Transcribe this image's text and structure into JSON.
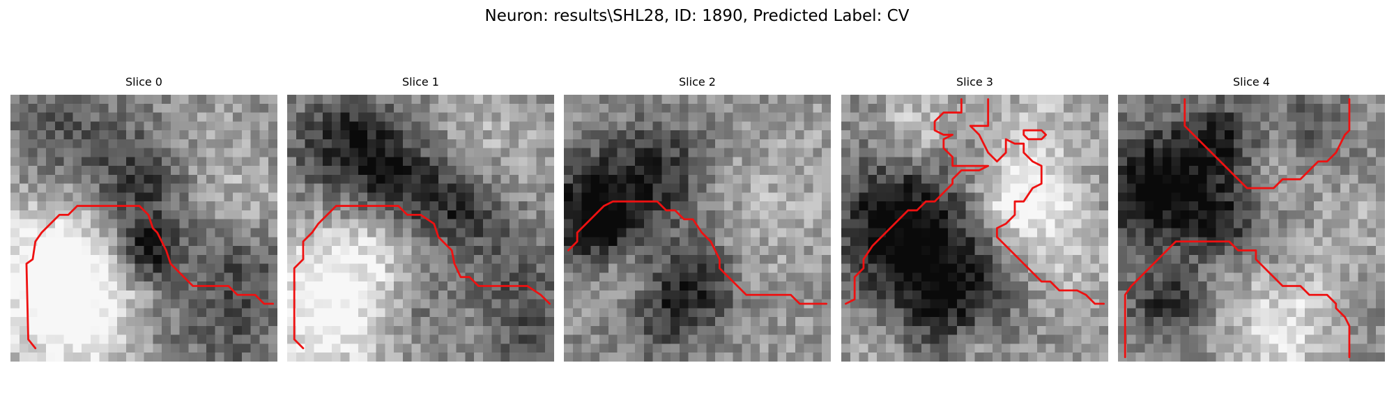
{
  "figure": {
    "title": "Neuron: results\\SHL28, ID: 1890, Predicted Label: CV"
  },
  "panels": [
    {
      "title": "Slice 0",
      "contours": [
        [
          [
            2.8,
            28.5
          ],
          [
            2,
            27.5
          ],
          [
            1.8,
            19
          ],
          [
            2.5,
            18.5
          ],
          [
            2.8,
            16.5
          ],
          [
            3.5,
            15.5
          ],
          [
            4.5,
            14.5
          ],
          [
            5.5,
            13.5
          ],
          [
            6.5,
            13.5
          ],
          [
            7.5,
            12.5
          ],
          [
            14.5,
            12.5
          ],
          [
            15.5,
            13.5
          ],
          [
            16,
            15
          ],
          [
            16.5,
            15.5
          ],
          [
            17.5,
            17.5
          ],
          [
            18,
            19
          ],
          [
            19.5,
            20.5
          ],
          [
            20.5,
            21.5
          ],
          [
            24.5,
            21.5
          ],
          [
            25.5,
            22.5
          ],
          [
            27.5,
            22.5
          ],
          [
            28.5,
            23.5
          ],
          [
            29.5,
            23.5
          ]
        ]
      ]
    },
    {
      "title": "Slice 1",
      "contours": [
        [
          [
            1.8,
            28.5
          ],
          [
            0.8,
            27.5
          ],
          [
            0.8,
            19.5
          ],
          [
            1.8,
            18.5
          ],
          [
            1.8,
            16.5
          ],
          [
            2.8,
            15.5
          ],
          [
            3.5,
            14.5
          ],
          [
            4.5,
            13.5
          ],
          [
            5.5,
            12.5
          ],
          [
            12.5,
            12.5
          ],
          [
            13.5,
            13.5
          ],
          [
            15,
            13.5
          ],
          [
            16.5,
            14.5
          ],
          [
            17,
            16
          ],
          [
            18.5,
            17.5
          ],
          [
            18.8,
            19
          ],
          [
            19.5,
            20.5
          ],
          [
            20.5,
            20.5
          ],
          [
            21.5,
            21.5
          ],
          [
            27,
            21.5
          ],
          [
            28.5,
            22.5
          ],
          [
            29.5,
            23.5
          ]
        ]
      ]
    },
    {
      "title": "Slice 2",
      "contours": [
        [
          [
            0.5,
            17.5
          ],
          [
            1.5,
            16.5
          ],
          [
            1.5,
            15.5
          ],
          [
            2.5,
            14.5
          ],
          [
            3.5,
            13.5
          ],
          [
            4.5,
            12.5
          ],
          [
            5.5,
            12
          ],
          [
            10.5,
            12
          ],
          [
            11.5,
            13
          ],
          [
            12.5,
            13
          ],
          [
            13.5,
            14
          ],
          [
            14.5,
            14
          ],
          [
            15.5,
            15.5
          ],
          [
            16.5,
            16.5
          ],
          [
            17.5,
            18.5
          ],
          [
            17.5,
            19.5
          ],
          [
            19.5,
            21.5
          ],
          [
            20.5,
            22.5
          ],
          [
            25.5,
            22.5
          ],
          [
            26.5,
            23.5
          ],
          [
            29.5,
            23.5
          ]
        ]
      ]
    },
    {
      "title": "Slice 3",
      "contours": [
        [
          [
            0.5,
            23.5
          ],
          [
            1.5,
            23
          ],
          [
            1.5,
            20.5
          ],
          [
            2.5,
            19.5
          ],
          [
            2.5,
            18.5
          ],
          [
            3.5,
            17
          ],
          [
            4.5,
            16
          ],
          [
            5.5,
            15
          ],
          [
            6.5,
            14
          ],
          [
            7.5,
            13
          ],
          [
            8.5,
            13
          ],
          [
            9.5,
            12
          ],
          [
            10.5,
            12
          ],
          [
            11.5,
            11
          ],
          [
            12.5,
            10
          ],
          [
            12.5,
            9.5
          ],
          [
            13.5,
            8.5
          ],
          [
            14.5,
            8.5
          ],
          [
            15.5,
            8.5
          ],
          [
            16.5,
            8
          ],
          [
            12.5,
            8
          ],
          [
            12.5,
            7
          ],
          [
            11.5,
            6
          ],
          [
            11.5,
            5
          ],
          [
            12.5,
            4.5
          ],
          [
            11.5,
            4.5
          ],
          [
            10.5,
            4
          ],
          [
            10.5,
            3
          ],
          [
            11.5,
            2
          ],
          [
            13.5,
            2
          ],
          [
            13.5,
            0.5
          ]
        ],
        [
          [
            16.5,
            0.5
          ],
          [
            16.5,
            3.5
          ],
          [
            14.5,
            3.5
          ],
          [
            15.5,
            4.5
          ],
          [
            16,
            5.5
          ],
          [
            16.5,
            6.5
          ],
          [
            17.5,
            7.5
          ],
          [
            18.5,
            6.5
          ],
          [
            18.5,
            5
          ],
          [
            19.5,
            5.5
          ],
          [
            20.5,
            5.5
          ],
          [
            20.5,
            6.5
          ],
          [
            21.5,
            7.5
          ],
          [
            22.5,
            8
          ],
          [
            22.5,
            10
          ],
          [
            21.5,
            10.5
          ],
          [
            20.5,
            12
          ],
          [
            19.5,
            12
          ],
          [
            19.5,
            13.5
          ],
          [
            18.5,
            14.5
          ],
          [
            17.5,
            15
          ],
          [
            17.5,
            16
          ],
          [
            18.5,
            17
          ],
          [
            19.5,
            18
          ],
          [
            20.5,
            19
          ],
          [
            21.5,
            20
          ],
          [
            22.5,
            21
          ],
          [
            23.5,
            21
          ],
          [
            24.5,
            22
          ],
          [
            26.5,
            22
          ],
          [
            27.5,
            22.5
          ],
          [
            28.5,
            23.5
          ],
          [
            29.5,
            23.5
          ]
        ],
        [
          [
            20.5,
            4
          ],
          [
            21.5,
            4
          ],
          [
            22.5,
            4
          ],
          [
            23,
            4.5
          ],
          [
            22.5,
            5
          ],
          [
            21,
            5
          ],
          [
            20.5,
            4.5
          ],
          [
            20.5,
            4
          ]
        ]
      ]
    },
    {
      "title": "Slice 4",
      "contours": [
        [
          [
            7.5,
            0.5
          ],
          [
            7.5,
            3.5
          ],
          [
            8.5,
            4.5
          ],
          [
            9.5,
            5.5
          ],
          [
            10.5,
            6.5
          ],
          [
            11.5,
            7.5
          ],
          [
            12.5,
            8.5
          ],
          [
            13.5,
            9.5
          ],
          [
            14.5,
            10.5
          ],
          [
            17.5,
            10.5
          ],
          [
            18.5,
            9.5
          ],
          [
            20.5,
            9.5
          ],
          [
            21.5,
            8.5
          ],
          [
            22.5,
            7.5
          ],
          [
            23.5,
            7.5
          ],
          [
            24.5,
            6.5
          ],
          [
            25,
            5.5
          ],
          [
            25.5,
            4.5
          ],
          [
            26,
            4
          ],
          [
            26,
            0.5
          ]
        ],
        [
          [
            0.8,
            29.5
          ],
          [
            0.8,
            22.5
          ],
          [
            1.5,
            21.5
          ],
          [
            2.5,
            20.5
          ],
          [
            3.5,
            19.5
          ],
          [
            4.5,
            18.5
          ],
          [
            5.5,
            17.5
          ],
          [
            6.5,
            16.5
          ],
          [
            12.5,
            16.5
          ],
          [
            13.5,
            17.5
          ],
          [
            15.5,
            17.5
          ],
          [
            15.5,
            18.5
          ],
          [
            16.5,
            19.5
          ],
          [
            17.5,
            20.5
          ],
          [
            18.5,
            21.5
          ],
          [
            20.5,
            21.5
          ],
          [
            21.5,
            22.5
          ],
          [
            23.5,
            22.5
          ],
          [
            24.5,
            23.5
          ],
          [
            24.5,
            24
          ],
          [
            25.5,
            25
          ],
          [
            26,
            26
          ],
          [
            26,
            29.5
          ]
        ]
      ]
    }
  ],
  "colors": {
    "contour": "#ee1111",
    "image_palette": "grayscale"
  }
}
